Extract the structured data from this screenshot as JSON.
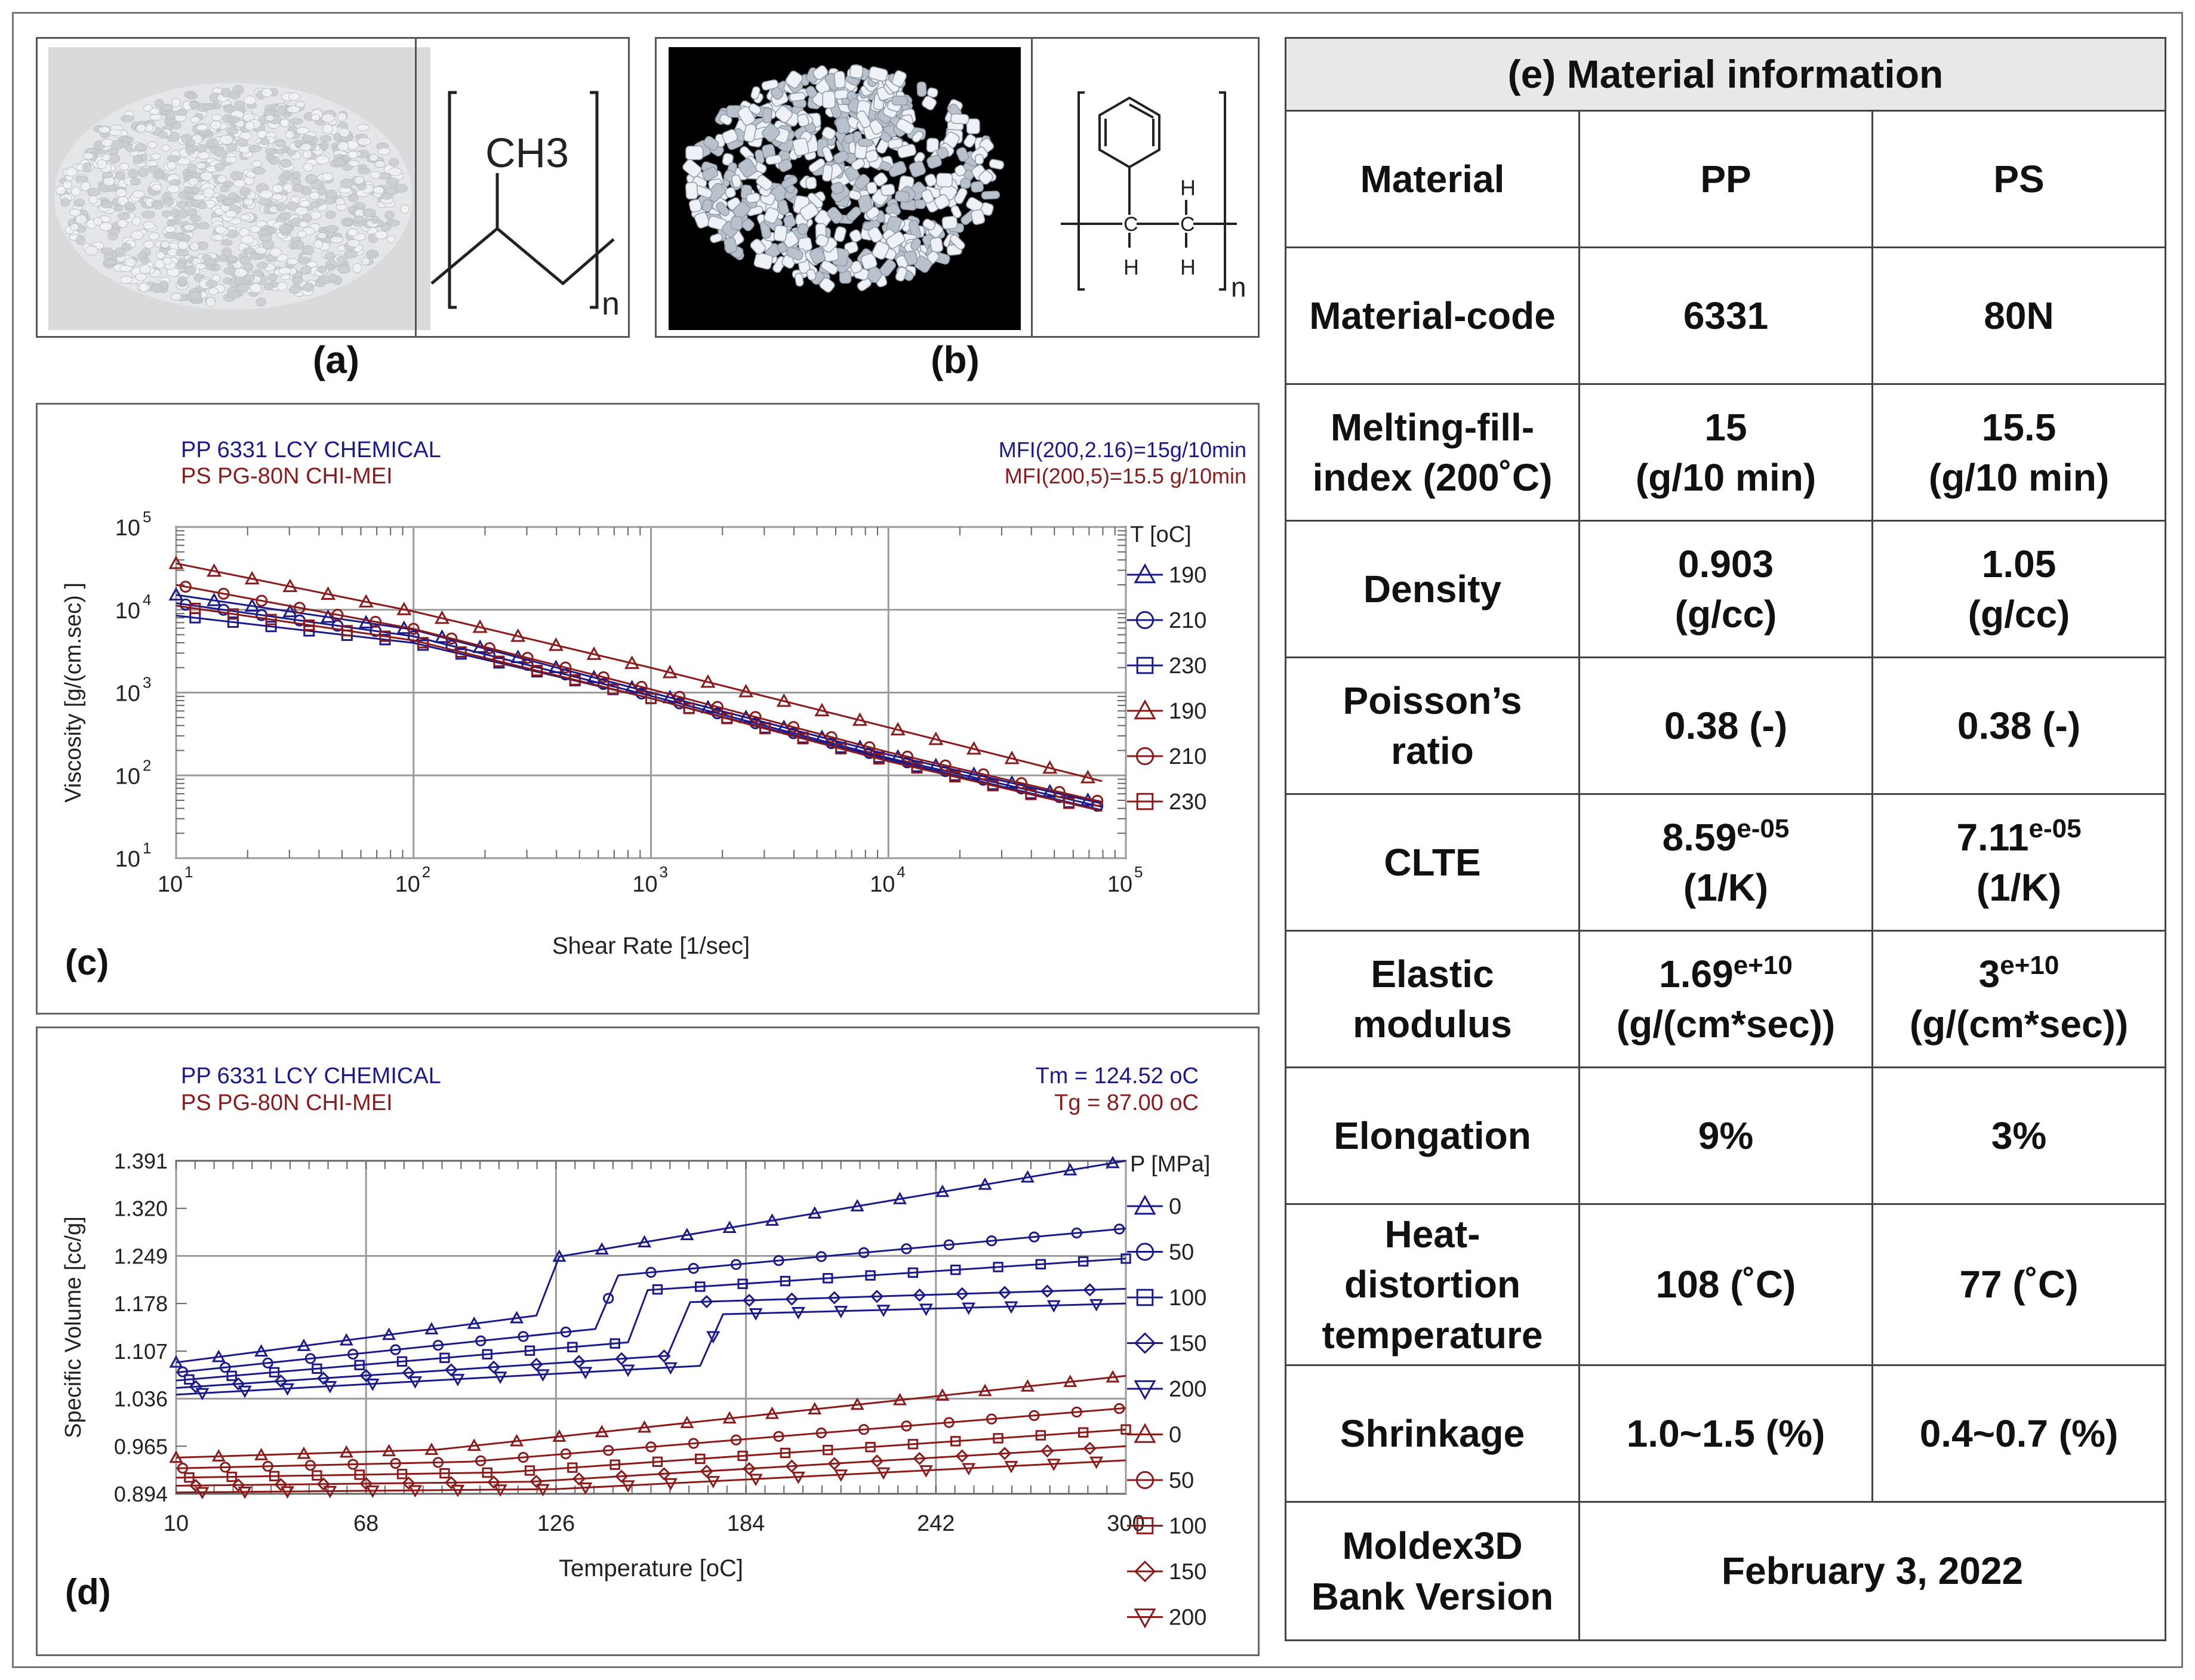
{
  "panel_a": {
    "caption": "(a)",
    "structure": {
      "group": "CH3",
      "subscript": "n"
    }
  },
  "panel_b": {
    "caption": "(b)",
    "structure": {
      "h_label": "H",
      "subscript": "n"
    }
  },
  "panel_c": {
    "label": "(c)",
    "chart_data": {
      "type": "line",
      "scale": "log-log",
      "legend_left": [
        "PP  6331    LCY CHEMICAL",
        "PS  PG-80N    CHI-MEI"
      ],
      "legend_right": [
        "MFI(200,2.16)=15g/10min",
        "MFI(200,5)=15.5 g/10min"
      ],
      "xlabel": "Shear Rate [1/sec]",
      "ylabel": "Viscosity [g/(cm.sec) ]",
      "x_ticks": [
        "10",
        "10",
        "10",
        "10",
        "10"
      ],
      "x_exps": [
        "1",
        "2",
        "3",
        "4",
        "5"
      ],
      "y_ticks": [
        "10",
        "10",
        "10",
        "10",
        "10"
      ],
      "y_exps": [
        "5",
        "4",
        "3",
        "2",
        "1"
      ],
      "xlim_log10": [
        1,
        5
      ],
      "ylim_log10": [
        1,
        5
      ],
      "legend_title": "T [oC]",
      "series": [
        {
          "name": "190",
          "material": "PP",
          "color": "#1a1a8c",
          "marker": "triangle",
          "log_eta_at_log_gamma": [
            [
              1,
              4.18
            ],
            [
              2,
              3.76
            ],
            [
              3,
              3.0
            ],
            [
              4,
              2.25
            ],
            [
              4.9,
              1.66
            ]
          ]
        },
        {
          "name": "210",
          "material": "PP",
          "color": "#1a1a8c",
          "marker": "circle",
          "log_eta_at_log_gamma": [
            [
              1,
              4.08
            ],
            [
              2,
              3.68
            ],
            [
              3,
              2.96
            ],
            [
              4,
              2.21
            ],
            [
              4.9,
              1.62
            ]
          ]
        },
        {
          "name": "230",
          "material": "PP",
          "color": "#1a1a8c",
          "marker": "square",
          "log_eta_at_log_gamma": [
            [
              1,
              3.93
            ],
            [
              2,
              3.6
            ],
            [
              3,
              2.93
            ],
            [
              4,
              2.19
            ],
            [
              4.9,
              1.58
            ]
          ]
        },
        {
          "name": "190",
          "material": "PS",
          "color": "#8c1a1a",
          "marker": "triangle",
          "log_eta_at_log_gamma": [
            [
              1,
              4.56
            ],
            [
              2,
              3.98
            ],
            [
              3,
              3.3
            ],
            [
              4,
              2.58
            ],
            [
              4.9,
              1.93
            ]
          ]
        },
        {
          "name": "210",
          "material": "PS",
          "color": "#8c1a1a",
          "marker": "circle",
          "log_eta_at_log_gamma": [
            [
              1,
              4.3
            ],
            [
              2,
              3.77
            ],
            [
              3,
              3.04
            ],
            [
              4,
              2.28
            ],
            [
              4.9,
              1.68
            ]
          ]
        },
        {
          "name": "230",
          "material": "PS",
          "color": "#8c1a1a",
          "marker": "square",
          "log_eta_at_log_gamma": [
            [
              1,
              4.05
            ],
            [
              2,
              3.63
            ],
            [
              3,
              2.93
            ],
            [
              4,
              2.17
            ],
            [
              4.9,
              1.57
            ]
          ]
        }
      ]
    }
  },
  "panel_d": {
    "label": "(d)",
    "chart_data": {
      "type": "line",
      "legend_left": [
        "PP  6331    LCY CHEMICAL",
        "PS  PG-80N    CHI-MEI"
      ],
      "legend_right": [
        "Tm = 124.52 oC",
        "Tg =  87.00 oC"
      ],
      "xlabel": "Temperature [oC]",
      "ylabel": "Specific Volume [cc/g]",
      "x_ticks": [
        "10",
        "68",
        "126",
        "184",
        "242",
        "300"
      ],
      "y_ticks": [
        "1.391",
        "1.320",
        "1.249",
        "1.178",
        "1.107",
        "1.036",
        "0.965",
        "0.894"
      ],
      "xlim": [
        10,
        300
      ],
      "ylim": [
        0.894,
        1.391
      ],
      "legend_title": "P [MPa]",
      "series": [
        {
          "name": "0",
          "material": "PP",
          "color": "#1a1a8c",
          "marker": "triangle",
          "points": [
            [
              10,
              1.09
            ],
            [
              120,
              1.16
            ],
            [
              127,
              1.248
            ],
            [
              300,
              1.391
            ]
          ]
        },
        {
          "name": "50",
          "material": "PP",
          "color": "#1a1a8c",
          "marker": "circle",
          "points": [
            [
              10,
              1.075
            ],
            [
              138,
              1.14
            ],
            [
              145,
              1.22
            ],
            [
              300,
              1.29
            ]
          ]
        },
        {
          "name": "100",
          "material": "PP",
          "color": "#1a1a8c",
          "marker": "square",
          "points": [
            [
              10,
              1.063
            ],
            [
              148,
              1.12
            ],
            [
              154,
              1.198
            ],
            [
              300,
              1.245
            ]
          ]
        },
        {
          "name": "150",
          "material": "PP",
          "color": "#1a1a8c",
          "marker": "diamond",
          "points": [
            [
              10,
              1.052
            ],
            [
              160,
              1.1
            ],
            [
              167,
              1.18
            ],
            [
              300,
              1.2
            ]
          ]
        },
        {
          "name": "200",
          "material": "PP",
          "color": "#1a1a8c",
          "marker": "down-triangle",
          "points": [
            [
              10,
              1.042
            ],
            [
              170,
              1.085
            ],
            [
              177,
              1.162
            ],
            [
              300,
              1.178
            ]
          ]
        },
        {
          "name": "0",
          "material": "PS",
          "color": "#8c1a1a",
          "marker": "triangle",
          "points": [
            [
              10,
              0.948
            ],
            [
              90,
              0.96
            ],
            [
              300,
              1.07
            ]
          ]
        },
        {
          "name": "50",
          "material": "PS",
          "color": "#8c1a1a",
          "marker": "circle",
          "points": [
            [
              10,
              0.932
            ],
            [
              100,
              0.942
            ],
            [
              300,
              1.022
            ]
          ]
        },
        {
          "name": "100",
          "material": "PS",
          "color": "#8c1a1a",
          "marker": "square",
          "points": [
            [
              10,
              0.918
            ],
            [
              110,
              0.926
            ],
            [
              300,
              0.99
            ]
          ]
        },
        {
          "name": "150",
          "material": "PS",
          "color": "#8c1a1a",
          "marker": "diamond",
          "points": [
            [
              10,
              0.906
            ],
            [
              118,
              0.912
            ],
            [
              300,
              0.965
            ]
          ]
        },
        {
          "name": "200",
          "material": "PS",
          "color": "#8c1a1a",
          "marker": "down-triangle",
          "points": [
            [
              10,
              0.896
            ],
            [
              126,
              0.901
            ],
            [
              300,
              0.944
            ]
          ]
        }
      ]
    }
  },
  "table": {
    "title": "(e) Material information",
    "headers": [
      "Material",
      "PP",
      "PS"
    ],
    "rows": [
      {
        "label": [
          "Material-code"
        ],
        "pp": [
          "6331"
        ],
        "ps": [
          "80N"
        ]
      },
      {
        "label": [
          "Melting-fill-",
          "index (200˚C)"
        ],
        "pp": [
          "15",
          "(g/10 min)"
        ],
        "ps": [
          "15.5",
          "(g/10 min)"
        ]
      },
      {
        "label": [
          "Density"
        ],
        "pp": [
          "0.903",
          "(g/cc)"
        ],
        "ps": [
          "1.05",
          "(g/cc)"
        ]
      },
      {
        "label": [
          "Poisson’s",
          "ratio"
        ],
        "pp": [
          "0.38 (-)"
        ],
        "ps": [
          "0.38 (-)"
        ]
      },
      {
        "label": [
          "CLTE"
        ],
        "pp_base": "8.59",
        "pp_exp": "e-05",
        "pp_unit": "(1/K)",
        "ps_base": "7.11",
        "ps_exp": "e-05",
        "ps_unit": "(1/K)"
      },
      {
        "label": [
          "Elastic",
          "modulus"
        ],
        "pp_base": "1.69",
        "pp_exp": "e+10",
        "pp_unit": "(g/(cm*sec))",
        "ps_base": "3",
        "ps_exp": "e+10",
        "ps_unit": "(g/(cm*sec))"
      },
      {
        "label": [
          "Elongation"
        ],
        "pp": [
          "9%"
        ],
        "ps": [
          "3%"
        ]
      },
      {
        "label": [
          "Heat-",
          "distortion",
          "temperature"
        ],
        "pp": [
          "108 (˚C)"
        ],
        "ps": [
          "77 (˚C)"
        ]
      },
      {
        "label": [
          "Shrinkage"
        ],
        "pp": [
          "1.0~1.5 (%)"
        ],
        "ps": [
          "0.4~0.7 (%)"
        ]
      },
      {
        "label": [
          "Moldex3D",
          "Bank Version"
        ],
        "merged": "February 3, 2022"
      }
    ]
  },
  "colors": {
    "pp": "#1a1a8c",
    "ps": "#8c1a1a",
    "grid": "#9a9a9a",
    "header_bg": "#e8e8e8"
  }
}
